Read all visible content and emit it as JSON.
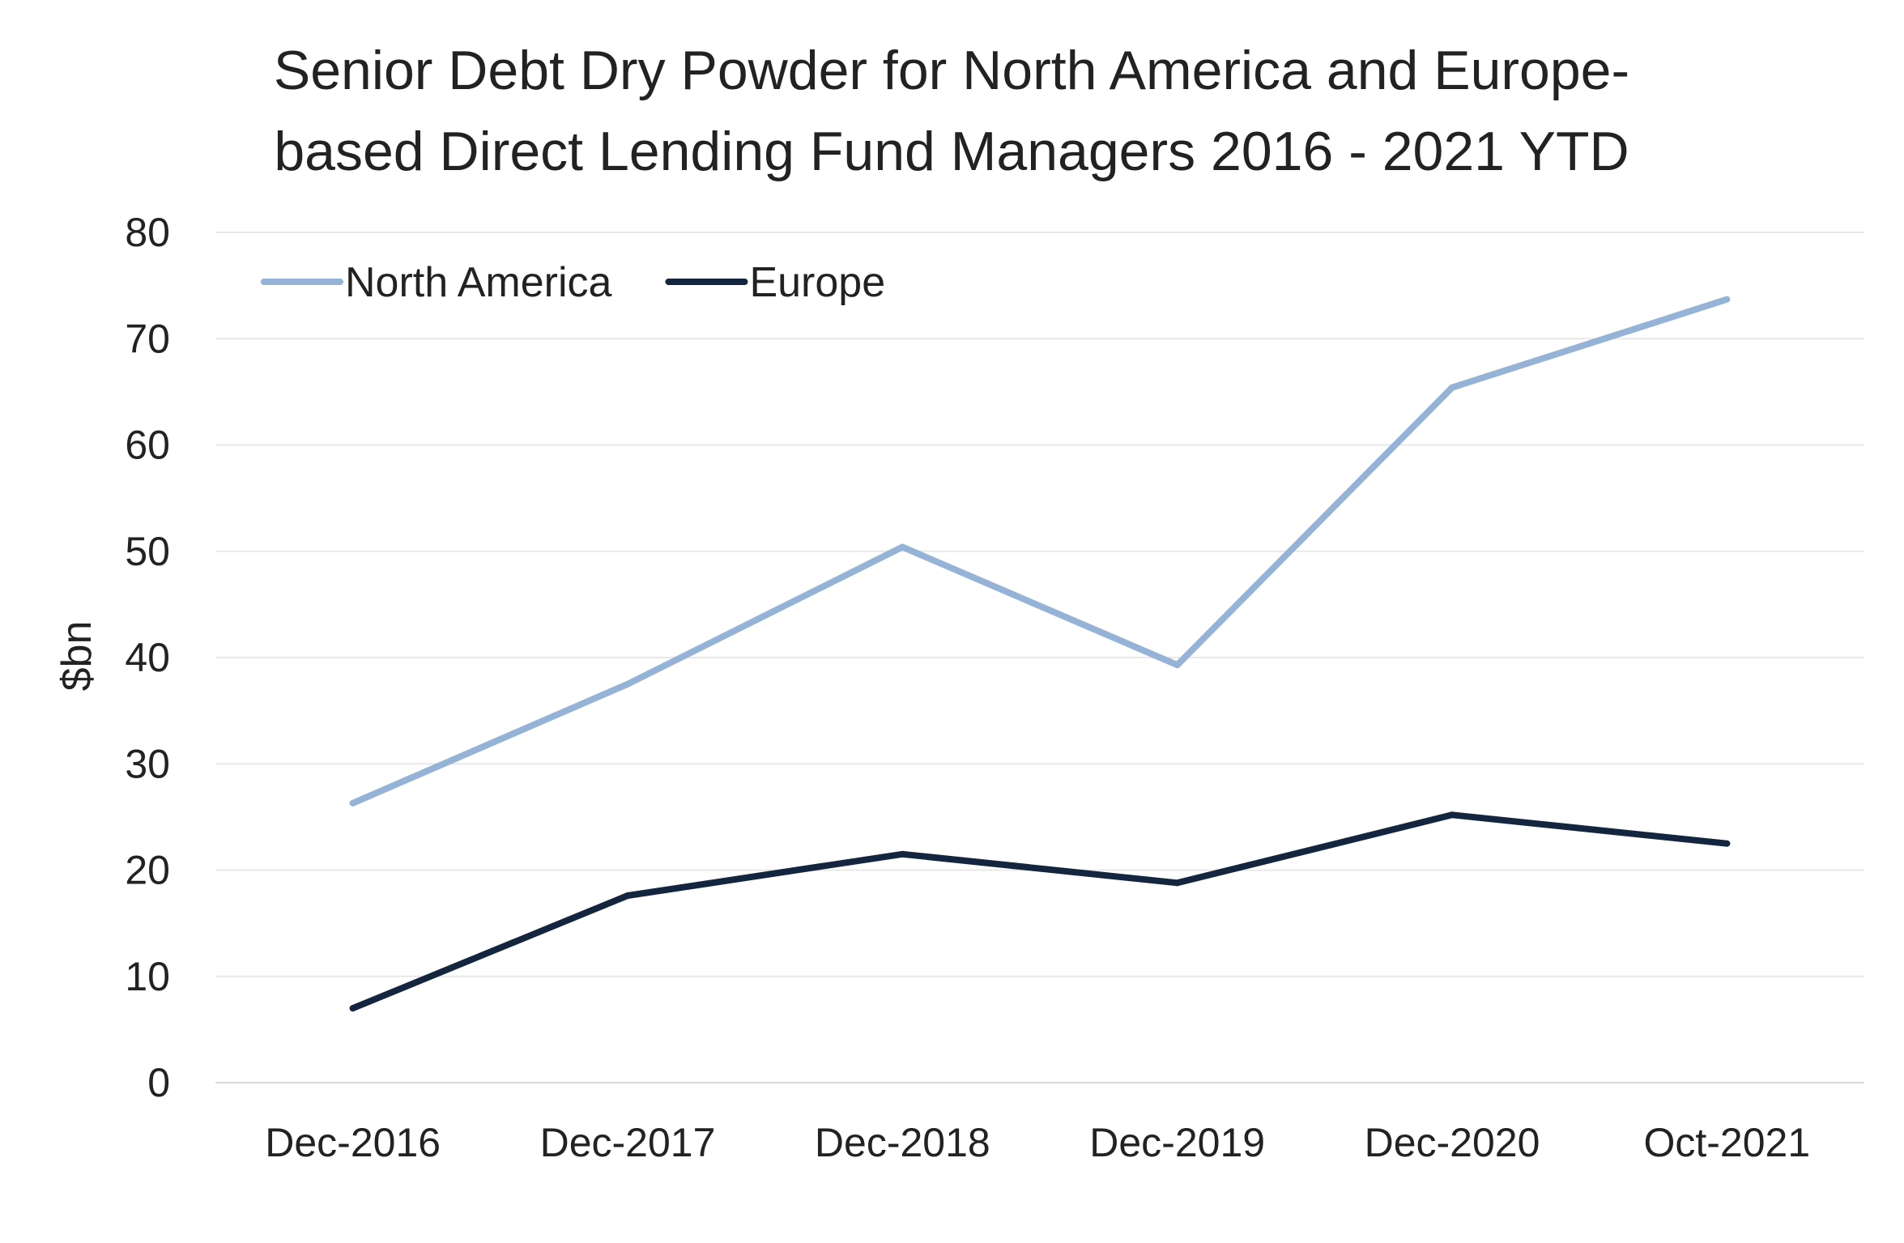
{
  "chart_data": {
    "type": "line",
    "title_lines": [
      "Senior Debt Dry Powder for North America and Europe-",
      "based Direct Lending Fund Managers 2016 - 2021 YTD"
    ],
    "xlabel": "",
    "ylabel": "$bn",
    "ylim": [
      0,
      80
    ],
    "yticks": [
      0,
      10,
      20,
      30,
      40,
      50,
      60,
      70,
      80
    ],
    "categories": [
      "Dec-2016",
      "Dec-2017",
      "Dec-2018",
      "Dec-2019",
      "Dec-2020",
      "Oct-2021"
    ],
    "grid": true,
    "legend_position": "top-left",
    "series": [
      {
        "name": "North America",
        "color": "#95b3d7",
        "values": [
          26.3,
          37.5,
          50.4,
          39.3,
          65.4,
          73.7
        ]
      },
      {
        "name": "Europe",
        "color": "#14263f",
        "values": [
          7.0,
          17.6,
          21.5,
          18.8,
          25.2,
          22.5
        ]
      }
    ]
  }
}
